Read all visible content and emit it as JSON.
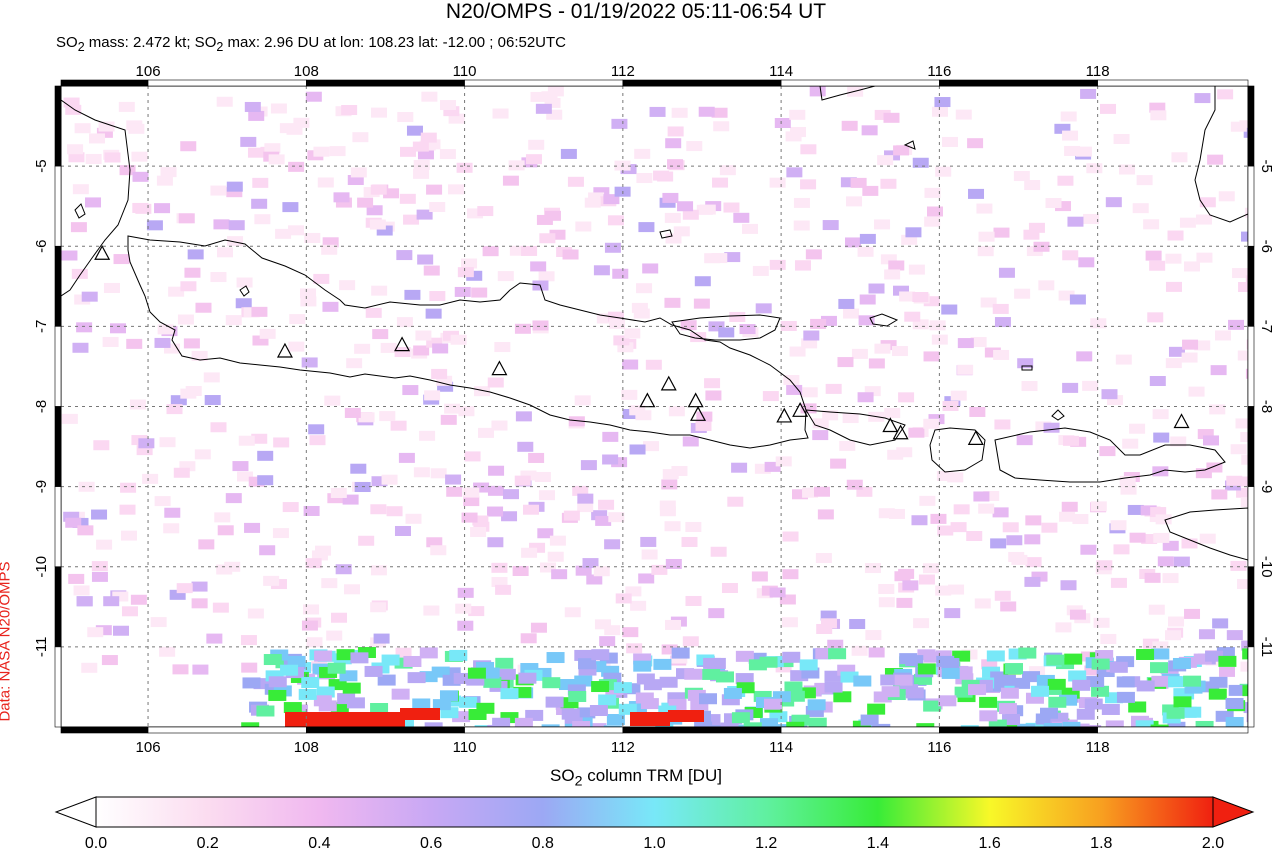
{
  "title": "N20/OMPS - 01/19/2022 05:11-06:54 UT",
  "subtitle": {
    "mass_label": "SO",
    "mass_sub": "2",
    "mass_text": " mass: 2.472 kt; SO",
    "max_sub": "2",
    "max_text": " max: 2.96 DU at lon: 108.23 lat: -12.00 ; 06:52UTC"
  },
  "side_label": "Data: NASA N20/OMPS",
  "colorbar": {
    "title_pre": "SO",
    "title_sub": "2",
    "title_post": " column TRM [DU]",
    "ticks": [
      "0.0",
      "0.2",
      "0.4",
      "0.6",
      "0.8",
      "1.0",
      "1.2",
      "1.4",
      "1.6",
      "1.8",
      "2.0"
    ],
    "range": [
      0.0,
      2.0
    ]
  },
  "map": {
    "lon_ticks": [
      "106",
      "108",
      "110",
      "112",
      "114",
      "116",
      "118"
    ],
    "lat_ticks": [
      "-5",
      "-6",
      "-7",
      "-8",
      "-9",
      "-10",
      "-11"
    ],
    "lon_range": [
      104.9,
      119.9
    ],
    "lat_range": [
      -12.0,
      -4.0
    ],
    "grid": "dotted",
    "volcano_marker": "triangle-outline"
  }
}
